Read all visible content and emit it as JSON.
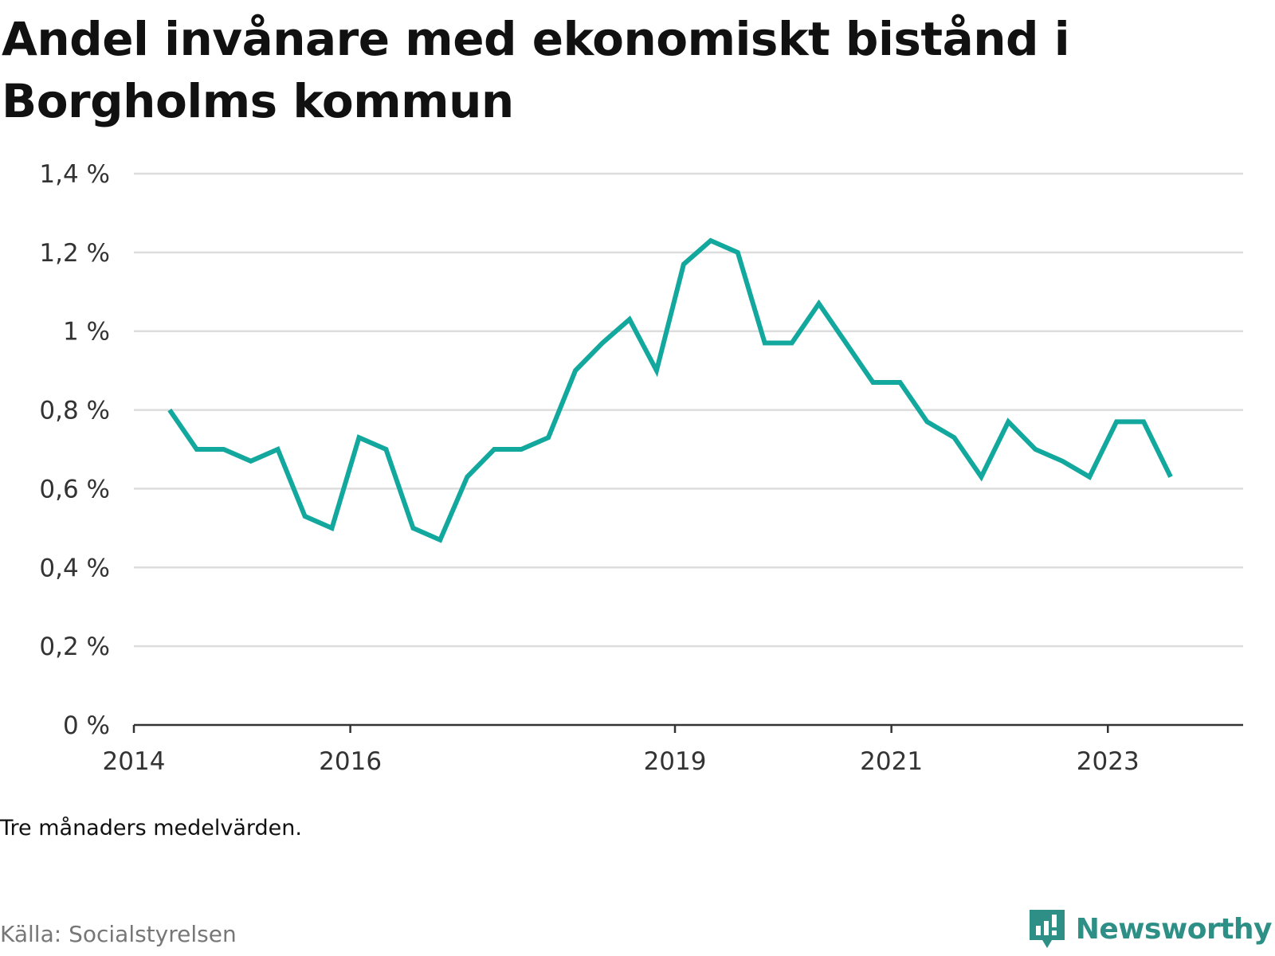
{
  "title": "Andel invånare med ekonomiskt bistånd i Borgholms kommun",
  "note": "Tre månaders medelvärden.",
  "source": "Källa: Socialstyrelsen",
  "brand": {
    "name": "Newsworthy",
    "icon": "newsworthy-logo-icon",
    "color": "#2e8f86"
  },
  "chart_data": {
    "type": "line",
    "title": "Andel invånare med ekonomiskt bistånd i Borgholms kommun",
    "xlabel": "",
    "ylabel": "",
    "ylim": [
      0,
      1.4
    ],
    "yticks": [
      0,
      0.2,
      0.4,
      0.6,
      0.8,
      1.0,
      1.2,
      1.4
    ],
    "ytick_labels": [
      "0 %",
      "0,2 %",
      "0,4 %",
      "0,6 %",
      "0,8 %",
      "1 %",
      "1,2 %",
      "1,4 %"
    ],
    "xlim": [
      2014.0,
      2024.25
    ],
    "xticks": [
      2014,
      2016,
      2019,
      2021,
      2023
    ],
    "xtick_labels": [
      "2014",
      "2016",
      "2019",
      "2021",
      "2023"
    ],
    "grid": true,
    "color": "#13a89e",
    "series": [
      {
        "name": "",
        "x": [
          2014.33,
          2014.58,
          2014.83,
          2015.08,
          2015.33,
          2015.58,
          2015.83,
          2016.08,
          2016.33,
          2016.58,
          2016.83,
          2017.08,
          2017.33,
          2017.58,
          2017.83,
          2018.08,
          2018.33,
          2018.58,
          2018.83,
          2019.08,
          2019.33,
          2019.58,
          2019.83,
          2020.08,
          2020.33,
          2020.58,
          2020.83,
          2021.08,
          2021.33,
          2021.58,
          2021.83,
          2022.08,
          2022.33,
          2022.58,
          2022.83,
          2023.08,
          2023.33,
          2023.58
        ],
        "values": [
          0.8,
          0.7,
          0.7,
          0.67,
          0.7,
          0.53,
          0.5,
          0.73,
          0.7,
          0.5,
          0.47,
          0.63,
          0.7,
          0.7,
          0.73,
          0.9,
          0.97,
          1.03,
          0.9,
          1.17,
          1.23,
          1.2,
          0.97,
          0.97,
          1.07,
          0.97,
          0.87,
          0.87,
          0.77,
          0.73,
          0.63,
          0.77,
          0.7,
          0.67,
          0.63,
          0.77,
          0.77,
          0.63
        ]
      }
    ]
  }
}
